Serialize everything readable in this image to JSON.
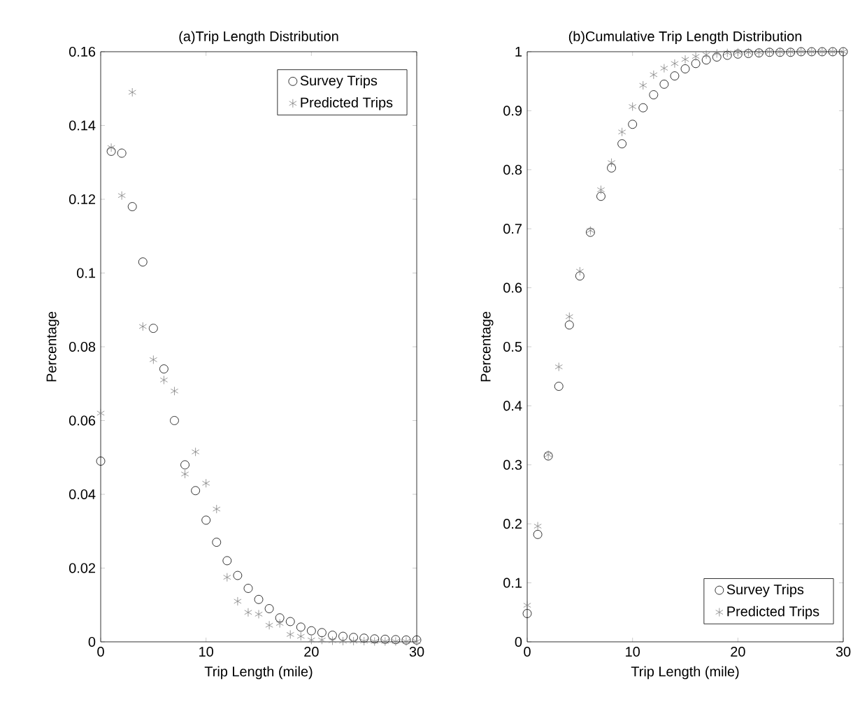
{
  "chart_data": [
    {
      "type": "scatter",
      "title": "(a)Trip Length Distribution",
      "xlabel": "Trip Length (mile)",
      "ylabel": "Percentage",
      "xlim": [
        0,
        30
      ],
      "xticks": [
        0,
        10,
        20,
        30
      ],
      "ylim": [
        0,
        0.16
      ],
      "yticks": [
        0,
        0.02,
        0.04,
        0.06,
        0.08,
        0.1,
        0.12,
        0.14,
        0.16
      ],
      "legend": "top right",
      "grid": false,
      "x": [
        0,
        1,
        2,
        3,
        4,
        5,
        6,
        7,
        8,
        9,
        10,
        11,
        12,
        13,
        14,
        15,
        16,
        17,
        18,
        19,
        20,
        21,
        22,
        23,
        24,
        25,
        26,
        27,
        28,
        29,
        30
      ],
      "series": [
        {
          "name": "Survey Trips",
          "color": "#000000",
          "marker": "circle",
          "values": [
            0.049,
            0.133,
            0.1325,
            0.118,
            0.103,
            0.085,
            0.074,
            0.06,
            0.048,
            0.041,
            0.033,
            0.027,
            0.022,
            0.018,
            0.0145,
            0.0115,
            0.009,
            0.0065,
            0.0055,
            0.004,
            0.003,
            0.0025,
            0.0018,
            0.0015,
            0.0012,
            0.001,
            0.0008,
            0.0007,
            0.0006,
            0.0005,
            0.0005
          ]
        },
        {
          "name": "Predicted Trips",
          "color": "#808080",
          "marker": "cross",
          "values": [
            0.062,
            0.134,
            0.121,
            0.149,
            0.0855,
            0.0765,
            0.071,
            0.068,
            0.0455,
            0.0515,
            0.043,
            0.036,
            0.0175,
            0.011,
            0.008,
            0.0075,
            0.0045,
            0.005,
            0.002,
            0.0015,
            0.0005,
            0.0005,
            0.0003,
            0.0002,
            0.0002,
            0.0002,
            0.0001,
            0.0001,
            0.0001,
            0.0001,
            0.0001
          ]
        }
      ]
    },
    {
      "type": "scatter",
      "title": "(b)Cumulative Trip Length Distribution",
      "xlabel": "Trip Length (mile)",
      "ylabel": "Percentage",
      "xlim": [
        0,
        30
      ],
      "xticks": [
        0,
        10,
        20,
        30
      ],
      "ylim": [
        0,
        1
      ],
      "yticks": [
        0,
        0.1,
        0.2,
        0.3,
        0.4,
        0.5,
        0.6,
        0.7,
        0.8,
        0.9,
        1
      ],
      "legend": "bottom right",
      "grid": false,
      "x": [
        0,
        1,
        2,
        3,
        4,
        5,
        6,
        7,
        8,
        9,
        10,
        11,
        12,
        13,
        14,
        15,
        16,
        17,
        18,
        19,
        20,
        21,
        22,
        23,
        24,
        25,
        26,
        27,
        28,
        29,
        30
      ],
      "series": [
        {
          "name": "Survey Trips",
          "color": "#000000",
          "marker": "circle",
          "values": [
            0.048,
            0.182,
            0.315,
            0.433,
            0.537,
            0.62,
            0.694,
            0.755,
            0.803,
            0.844,
            0.877,
            0.905,
            0.927,
            0.945,
            0.959,
            0.971,
            0.98,
            0.986,
            0.991,
            0.994,
            0.996,
            0.997,
            0.998,
            0.999,
            0.999,
            0.999,
            1,
            1,
            1,
            1,
            1
          ]
        },
        {
          "name": "Predicted Trips",
          "color": "#808080",
          "marker": "cross",
          "values": [
            0.062,
            0.196,
            0.317,
            0.466,
            0.551,
            0.628,
            0.697,
            0.766,
            0.812,
            0.864,
            0.907,
            0.943,
            0.961,
            0.972,
            0.98,
            0.987,
            0.992,
            0.995,
            0.997,
            0.998,
            0.999,
            0.999,
            0.999,
            1,
            1,
            1,
            1,
            1,
            1,
            1,
            1
          ]
        }
      ]
    }
  ]
}
